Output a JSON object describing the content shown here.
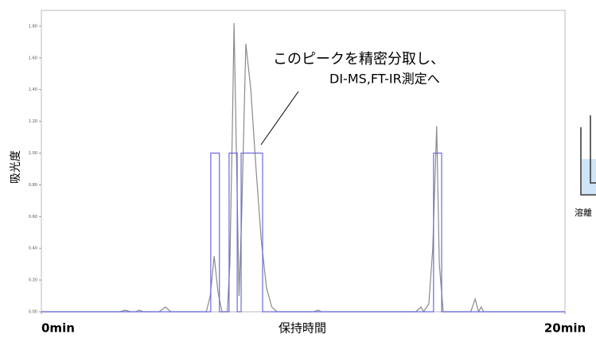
{
  "chart_data": {
    "type": "line",
    "x_label": "保持時間",
    "y_label": "吸光度",
    "annotations": [
      "このピークを精密分取し、",
      "DI-MS,FT-IR測定へ"
    ],
    "side_label": "溶離",
    "xlim": [
      0,
      20
    ],
    "xticks": [
      {
        "value": 0,
        "label": "0min"
      },
      {
        "value": 20,
        "label": "20min"
      }
    ],
    "ylim": [
      0,
      1.9
    ],
    "yticks": [
      {
        "value": 0,
        "label": "0.00"
      },
      {
        "value": 0.2,
        "label": "0.20"
      },
      {
        "value": 0.4,
        "label": "0.40"
      },
      {
        "value": 0.6,
        "label": "0.60"
      },
      {
        "value": 0.8,
        "label": "0.80"
      },
      {
        "value": 1.0,
        "label": "1.00"
      },
      {
        "value": 1.2,
        "label": "1.20"
      },
      {
        "value": 1.4,
        "label": "1.40"
      },
      {
        "value": 1.6,
        "label": "1.60"
      },
      {
        "value": 1.8,
        "label": "1.80"
      }
    ],
    "series": [
      {
        "color": "#8a8a8a",
        "x": [
          0,
          3.0,
          3.2,
          3.4,
          3.6,
          3.74,
          3.9,
          4.5,
          4.74,
          4.95,
          6.3,
          6.45,
          6.6,
          6.75,
          6.9,
          7.1,
          7.2,
          7.3,
          7.36,
          7.45,
          7.55,
          7.65,
          7.81,
          8.0,
          8.2,
          8.4,
          8.6,
          8.8,
          9.0,
          10.4,
          10.58,
          10.7,
          14.3,
          14.5,
          14.6,
          14.8,
          14.95,
          15.1,
          15.2,
          15.35,
          16.4,
          16.57,
          16.7,
          16.8,
          16.9,
          17.0,
          20
        ],
        "values": [
          0,
          0,
          0.01,
          0,
          0,
          0.01,
          0,
          0,
          0.03,
          0,
          0,
          0.1,
          0.35,
          0.12,
          0,
          0,
          0.3,
          1.2,
          1.82,
          1.0,
          0.1,
          0.6,
          1.69,
          1.4,
          0.9,
          0.45,
          0.15,
          0.03,
          0,
          0,
          0.01,
          0,
          0,
          0.03,
          0,
          0.05,
          0.4,
          1.17,
          0.3,
          0,
          0,
          0.08,
          0,
          0.03,
          0,
          0,
          0
        ]
      },
      {
        "color": "#6b6be0",
        "x": [
          0,
          6.47,
          6.47,
          6.8,
          6.8,
          7.17,
          7.17,
          7.48,
          7.48,
          7.63,
          7.63,
          8.45,
          8.45,
          14.98,
          14.98,
          15.29,
          15.29,
          20
        ],
        "values": [
          0,
          0,
          1,
          1,
          0,
          0,
          1,
          1,
          0,
          0,
          1,
          1,
          0,
          0,
          1,
          1,
          0,
          0
        ]
      }
    ]
  }
}
